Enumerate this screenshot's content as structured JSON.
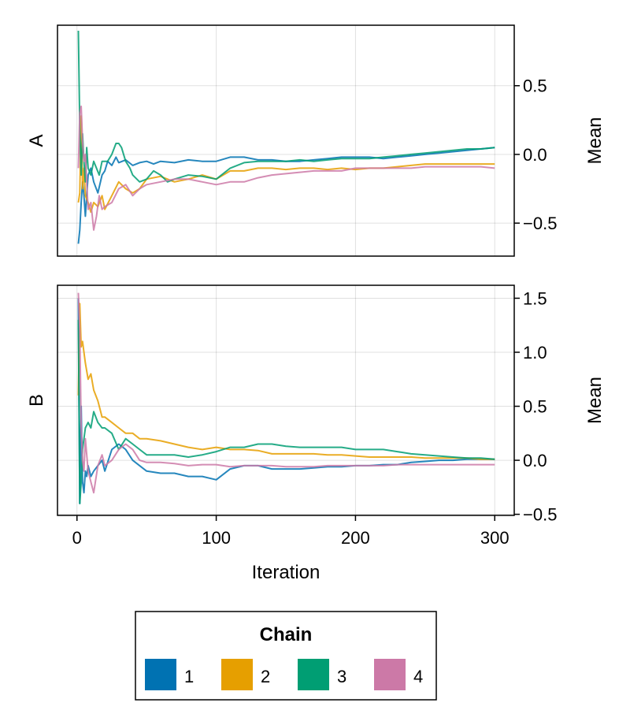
{
  "chart_data": [
    {
      "type": "line",
      "panel": "A",
      "ylabel_left": "A",
      "ylabel_right": "Mean",
      "xlabel": "",
      "xlim": [
        -14,
        314
      ],
      "ylim": [
        -0.74,
        0.94
      ],
      "yticks": [
        -0.5,
        0.0,
        0.5
      ],
      "ytick_labels": [
        "−0.5",
        "0.0",
        "0.5"
      ],
      "xticks": [
        0,
        100,
        200,
        300
      ],
      "grid": true,
      "series": [
        {
          "name": "1",
          "color": "#0072b2",
          "x": [
            1,
            2,
            3,
            4,
            5,
            6,
            7,
            8,
            10,
            12,
            15,
            18,
            20,
            22,
            25,
            28,
            30,
            35,
            40,
            45,
            50,
            55,
            60,
            70,
            80,
            90,
            100,
            110,
            120,
            130,
            140,
            150,
            160,
            170,
            180,
            190,
            200,
            210,
            220,
            230,
            240,
            250,
            260,
            270,
            280,
            290,
            300
          ],
          "y": [
            -0.65,
            -0.55,
            -0.35,
            -0.2,
            -0.3,
            -0.45,
            -0.3,
            -0.15,
            -0.1,
            -0.2,
            -0.28,
            -0.15,
            -0.12,
            -0.05,
            -0.08,
            -0.02,
            -0.06,
            -0.04,
            -0.08,
            -0.06,
            -0.05,
            -0.07,
            -0.05,
            -0.06,
            -0.04,
            -0.05,
            -0.05,
            -0.02,
            -0.02,
            -0.04,
            -0.04,
            -0.05,
            -0.05,
            -0.04,
            -0.03,
            -0.02,
            -0.02,
            -0.02,
            -0.03,
            -0.02,
            -0.01,
            0.0,
            0.01,
            0.02,
            0.03,
            0.04,
            0.05
          ]
        },
        {
          "name": "2",
          "color": "#e69f00",
          "x": [
            1,
            2,
            3,
            4,
            5,
            6,
            8,
            10,
            12,
            15,
            18,
            20,
            25,
            30,
            35,
            40,
            45,
            50,
            60,
            70,
            80,
            90,
            100,
            110,
            120,
            130,
            140,
            150,
            160,
            170,
            180,
            190,
            200,
            210,
            220,
            230,
            240,
            250,
            260,
            270,
            280,
            290,
            300
          ],
          "y": [
            -0.35,
            -0.28,
            0.28,
            -0.25,
            -0.1,
            -0.3,
            -0.35,
            -0.42,
            -0.35,
            -0.38,
            -0.3,
            -0.4,
            -0.3,
            -0.2,
            -0.25,
            -0.28,
            -0.25,
            -0.18,
            -0.16,
            -0.2,
            -0.18,
            -0.15,
            -0.18,
            -0.12,
            -0.12,
            -0.1,
            -0.1,
            -0.11,
            -0.1,
            -0.1,
            -0.11,
            -0.1,
            -0.11,
            -0.1,
            -0.1,
            -0.09,
            -0.08,
            -0.07,
            -0.07,
            -0.07,
            -0.07,
            -0.07,
            -0.07
          ]
        },
        {
          "name": "3",
          "color": "#009e73",
          "x": [
            1,
            2,
            3,
            4,
            5,
            6,
            7,
            8,
            10,
            12,
            14,
            16,
            18,
            20,
            22,
            25,
            28,
            30,
            32,
            35,
            38,
            40,
            45,
            50,
            55,
            60,
            65,
            70,
            80,
            90,
            100,
            110,
            120,
            130,
            140,
            150,
            160,
            170,
            180,
            190,
            200,
            210,
            220,
            230,
            240,
            250,
            260,
            270,
            280,
            290,
            300
          ],
          "y": [
            0.9,
            0.2,
            -0.15,
            0.15,
            -0.05,
            -0.2,
            0.05,
            -0.1,
            -0.15,
            -0.05,
            -0.1,
            -0.15,
            -0.05,
            -0.05,
            -0.05,
            0.0,
            0.08,
            0.08,
            0.05,
            -0.05,
            -0.1,
            -0.15,
            -0.2,
            -0.18,
            -0.12,
            -0.15,
            -0.2,
            -0.18,
            -0.15,
            -0.16,
            -0.18,
            -0.1,
            -0.06,
            -0.05,
            -0.05,
            -0.05,
            -0.04,
            -0.05,
            -0.04,
            -0.03,
            -0.03,
            -0.03,
            -0.02,
            -0.01,
            0.0,
            0.01,
            0.02,
            0.03,
            0.04,
            0.04,
            0.05
          ]
        },
        {
          "name": "4",
          "color": "#cc79a7",
          "x": [
            1,
            2,
            3,
            4,
            5,
            6,
            7,
            8,
            10,
            12,
            14,
            16,
            18,
            20,
            25,
            30,
            35,
            40,
            45,
            50,
            60,
            70,
            80,
            90,
            100,
            110,
            120,
            130,
            140,
            150,
            160,
            170,
            180,
            190,
            200,
            210,
            220,
            230,
            240,
            250,
            260,
            270,
            280,
            290,
            300
          ],
          "y": [
            -0.1,
            0.3,
            0.35,
            0.1,
            -0.05,
            0.0,
            -0.2,
            -0.4,
            -0.35,
            -0.55,
            -0.45,
            -0.3,
            -0.4,
            -0.38,
            -0.35,
            -0.25,
            -0.22,
            -0.3,
            -0.25,
            -0.22,
            -0.2,
            -0.18,
            -0.18,
            -0.2,
            -0.22,
            -0.2,
            -0.2,
            -0.17,
            -0.15,
            -0.14,
            -0.13,
            -0.12,
            -0.12,
            -0.12,
            -0.1,
            -0.1,
            -0.1,
            -0.1,
            -0.1,
            -0.09,
            -0.09,
            -0.09,
            -0.09,
            -0.09,
            -0.1
          ]
        }
      ]
    },
    {
      "type": "line",
      "panel": "B",
      "ylabel_left": "B",
      "ylabel_right": "Mean",
      "xlabel": "Iteration",
      "xlim": [
        -14,
        314
      ],
      "ylim": [
        -0.51,
        1.62
      ],
      "yticks": [
        -0.5,
        0.0,
        0.5,
        1.0,
        1.5
      ],
      "ytick_labels": [
        "−0.5",
        "0.0",
        "0.5",
        "1.0",
        "1.5"
      ],
      "xticks": [
        0,
        100,
        200,
        300
      ],
      "xtick_labels": [
        "0",
        "100",
        "200",
        "300"
      ],
      "grid": true,
      "series": [
        {
          "name": "1",
          "color": "#0072b2",
          "x": [
            1,
            2,
            3,
            4,
            5,
            6,
            7,
            8,
            10,
            12,
            15,
            18,
            20,
            25,
            30,
            35,
            40,
            45,
            50,
            60,
            70,
            80,
            90,
            100,
            110,
            120,
            130,
            140,
            150,
            160,
            170,
            180,
            190,
            200,
            210,
            220,
            230,
            240,
            250,
            260,
            270,
            280,
            290,
            300
          ],
          "y": [
            1.5,
            -0.4,
            0.5,
            -0.2,
            -0.3,
            -0.1,
            -0.15,
            -0.05,
            -0.15,
            -0.1,
            -0.05,
            0.0,
            -0.1,
            0.1,
            0.15,
            0.1,
            0.0,
            -0.05,
            -0.1,
            -0.12,
            -0.12,
            -0.15,
            -0.15,
            -0.18,
            -0.08,
            -0.05,
            -0.05,
            -0.08,
            -0.08,
            -0.08,
            -0.07,
            -0.06,
            -0.06,
            -0.05,
            -0.05,
            -0.04,
            -0.04,
            -0.02,
            -0.01,
            0.0,
            0.0,
            0.01,
            0.01,
            0.01
          ]
        },
        {
          "name": "2",
          "color": "#e69f00",
          "x": [
            1,
            2,
            3,
            4,
            5,
            6,
            8,
            10,
            12,
            15,
            18,
            20,
            25,
            30,
            35,
            40,
            45,
            50,
            60,
            70,
            80,
            90,
            100,
            110,
            120,
            130,
            140,
            150,
            160,
            170,
            180,
            190,
            200,
            210,
            220,
            230,
            240,
            250,
            260,
            270,
            280,
            290,
            300
          ],
          "y": [
            0.6,
            1.45,
            1.05,
            1.1,
            1.0,
            0.9,
            0.75,
            0.8,
            0.65,
            0.55,
            0.4,
            0.4,
            0.35,
            0.3,
            0.25,
            0.25,
            0.2,
            0.2,
            0.18,
            0.15,
            0.12,
            0.1,
            0.12,
            0.1,
            0.1,
            0.09,
            0.06,
            0.06,
            0.06,
            0.06,
            0.05,
            0.05,
            0.04,
            0.03,
            0.03,
            0.03,
            0.03,
            0.02,
            0.02,
            0.02,
            0.02,
            0.01,
            0.01
          ]
        },
        {
          "name": "3",
          "color": "#009e73",
          "x": [
            1,
            2,
            3,
            4,
            5,
            6,
            8,
            10,
            12,
            15,
            18,
            20,
            25,
            30,
            35,
            40,
            45,
            50,
            60,
            70,
            80,
            90,
            100,
            110,
            120,
            130,
            140,
            150,
            160,
            170,
            180,
            190,
            200,
            210,
            220,
            230,
            240,
            250,
            260,
            270,
            280,
            290,
            300
          ],
          "y": [
            1.3,
            -0.4,
            -0.2,
            0.1,
            0.2,
            0.3,
            0.35,
            0.3,
            0.45,
            0.35,
            0.3,
            0.3,
            0.25,
            0.1,
            0.2,
            0.15,
            0.1,
            0.05,
            0.05,
            0.05,
            0.03,
            0.05,
            0.08,
            0.12,
            0.12,
            0.15,
            0.15,
            0.13,
            0.12,
            0.12,
            0.12,
            0.12,
            0.1,
            0.1,
            0.1,
            0.08,
            0.06,
            0.05,
            0.04,
            0.03,
            0.02,
            0.02,
            0.01
          ]
        },
        {
          "name": "4",
          "color": "#cc79a7",
          "x": [
            1,
            2,
            3,
            4,
            5,
            6,
            8,
            10,
            12,
            15,
            18,
            20,
            25,
            30,
            35,
            40,
            45,
            50,
            60,
            70,
            80,
            90,
            100,
            110,
            120,
            130,
            140,
            150,
            160,
            170,
            180,
            190,
            200,
            210,
            220,
            230,
            240,
            250,
            260,
            270,
            280,
            290,
            300
          ],
          "y": [
            1.55,
            1.2,
            0.3,
            0.0,
            -0.1,
            0.2,
            -0.1,
            -0.2,
            -0.3,
            -0.05,
            0.05,
            -0.05,
            0.0,
            0.1,
            0.15,
            0.1,
            0.0,
            -0.02,
            -0.02,
            -0.03,
            -0.05,
            -0.04,
            -0.04,
            -0.06,
            -0.05,
            -0.05,
            -0.05,
            -0.06,
            -0.06,
            -0.06,
            -0.05,
            -0.05,
            -0.05,
            -0.05,
            -0.05,
            -0.04,
            -0.04,
            -0.04,
            -0.04,
            -0.04,
            -0.04,
            -0.04,
            -0.04
          ]
        }
      ]
    }
  ],
  "legend": {
    "title": "Chain",
    "placement": "bottom-center",
    "entries": [
      {
        "label": "1",
        "color": "#0072b2"
      },
      {
        "label": "2",
        "color": "#e69f00"
      },
      {
        "label": "3",
        "color": "#009e73"
      },
      {
        "label": "4",
        "color": "#cc79a7"
      }
    ]
  }
}
